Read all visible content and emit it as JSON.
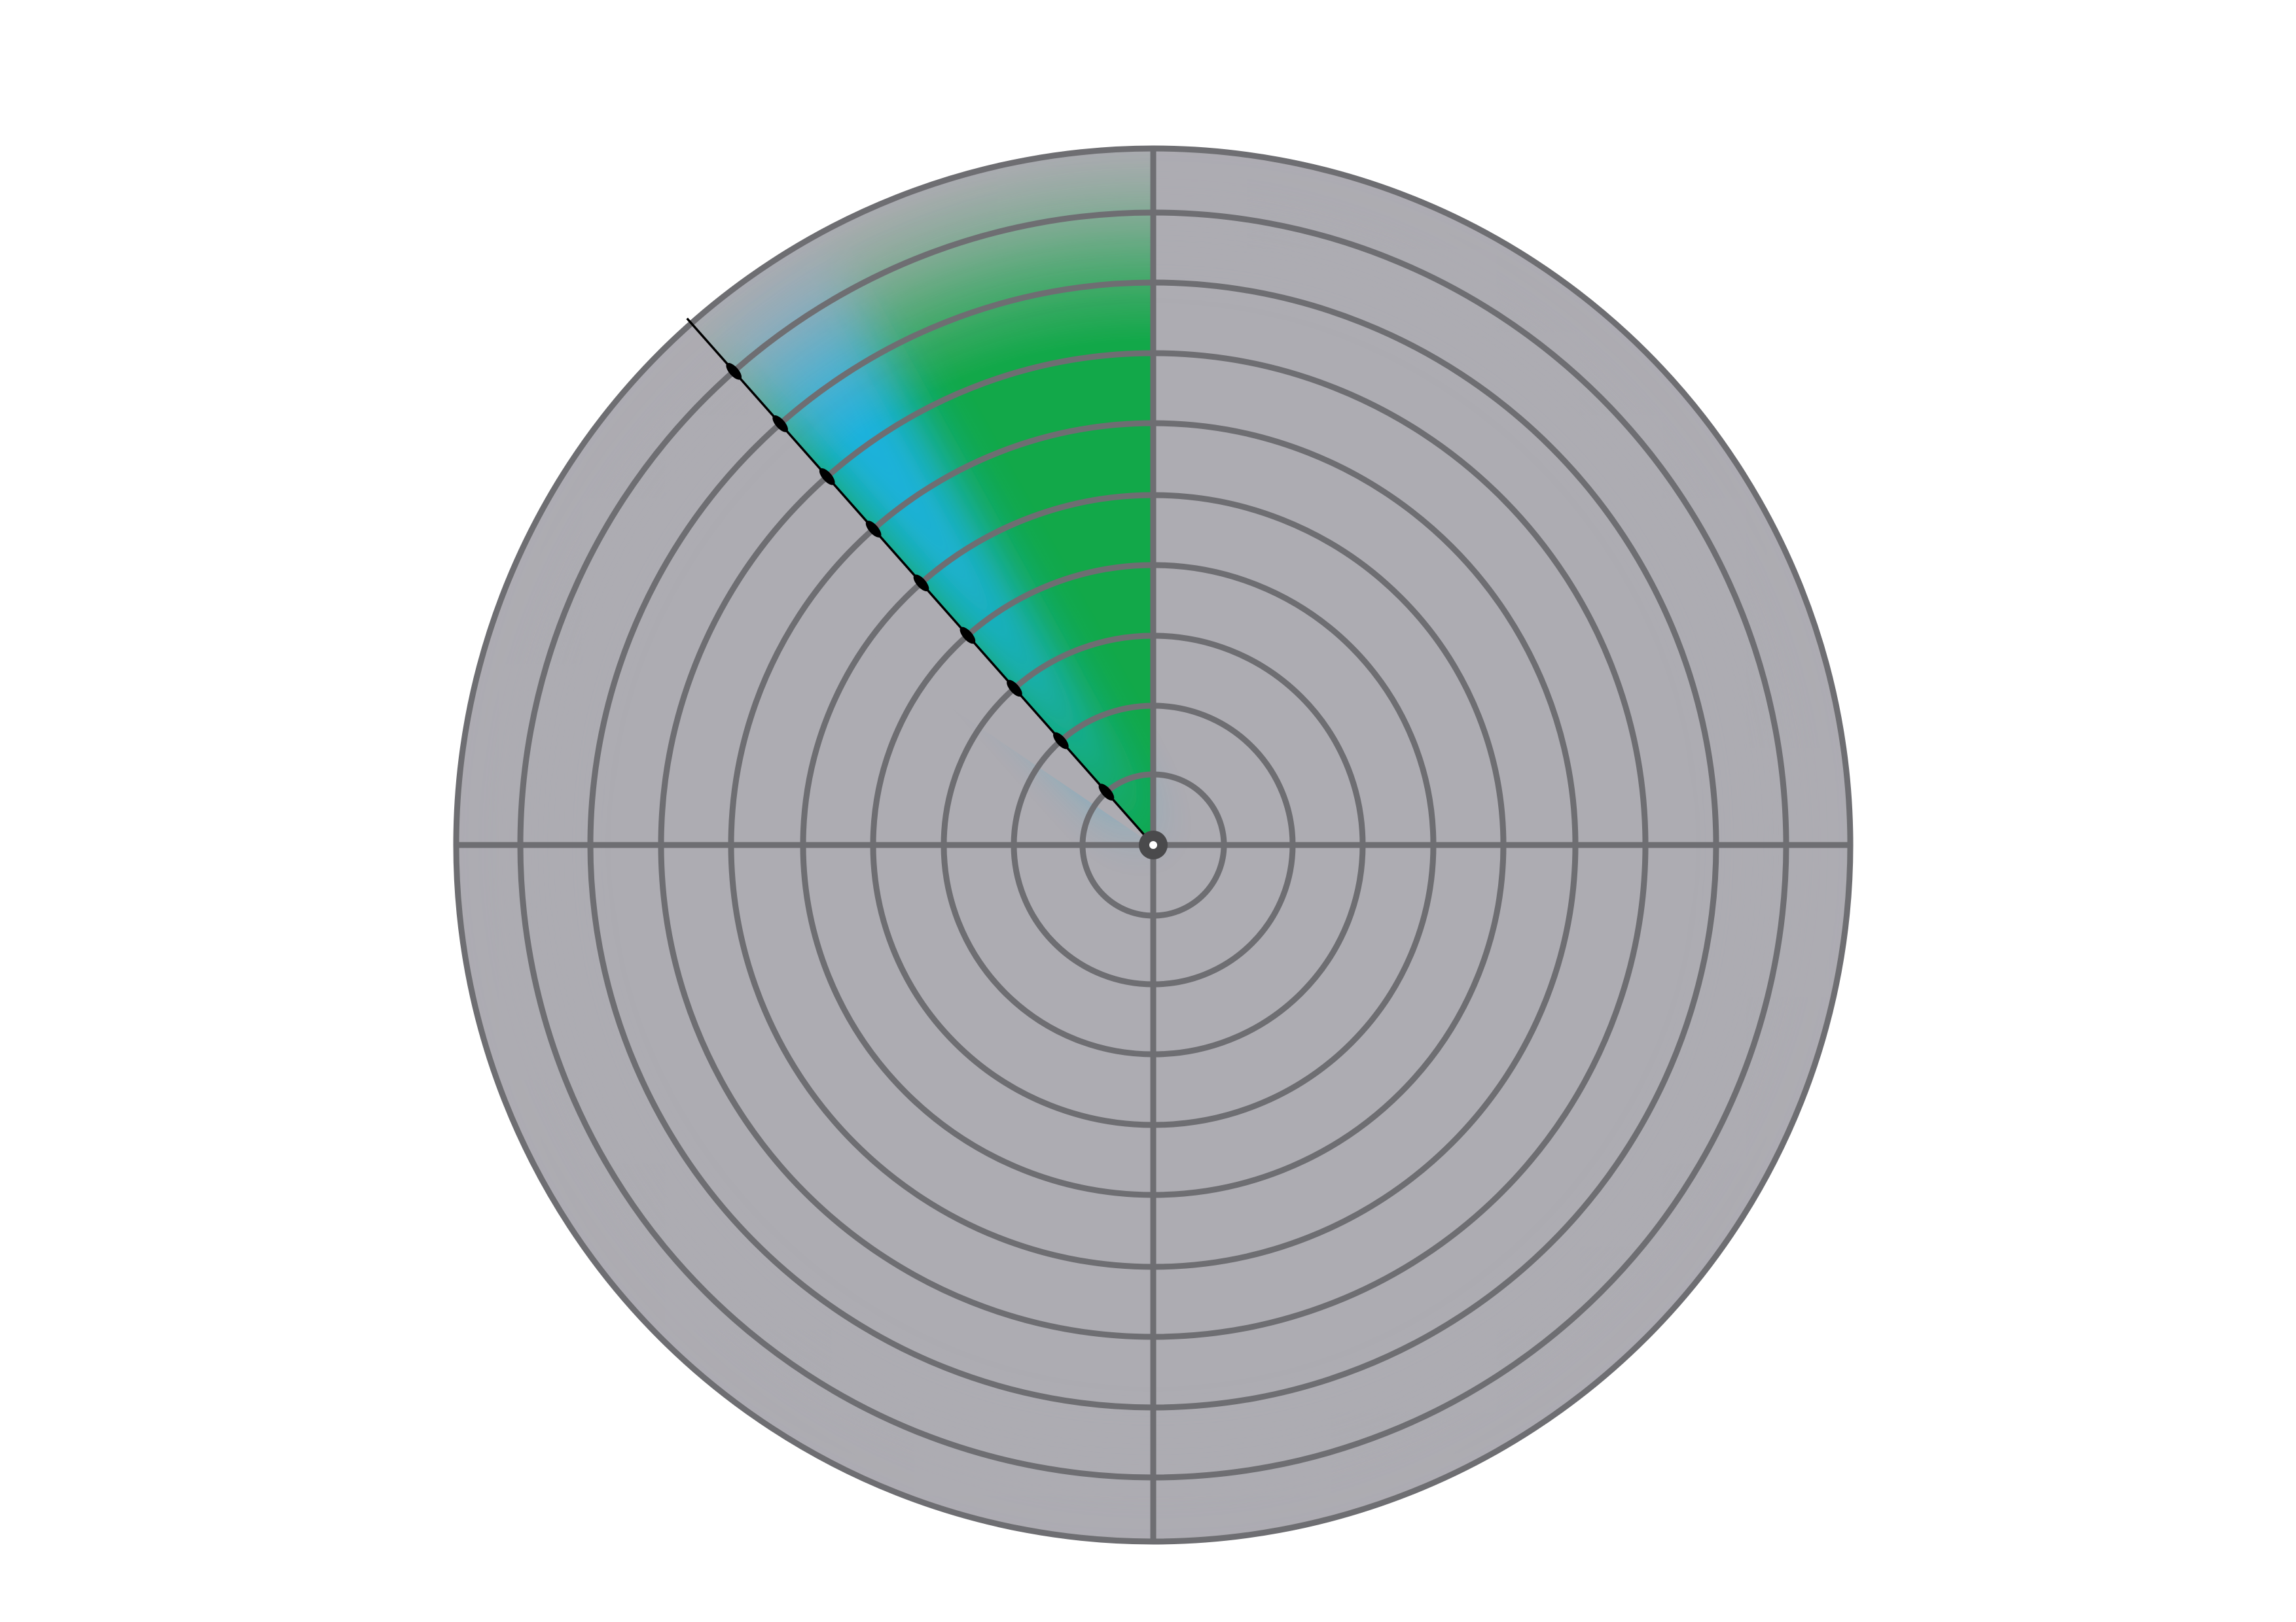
{
  "radar": {
    "ring_count": 10,
    "sweep_bead_count": 9,
    "colors": {
      "background": "#ffffff",
      "disc_fill": "#adacb2",
      "grid_stroke": "#6e6e72",
      "sweep_green": "#09a843",
      "sweep_blue": "#1fb2e6",
      "sweep_line": "#000000",
      "hub_outer": "#4a4a4c",
      "hub_inner": "#ffffff"
    }
  }
}
